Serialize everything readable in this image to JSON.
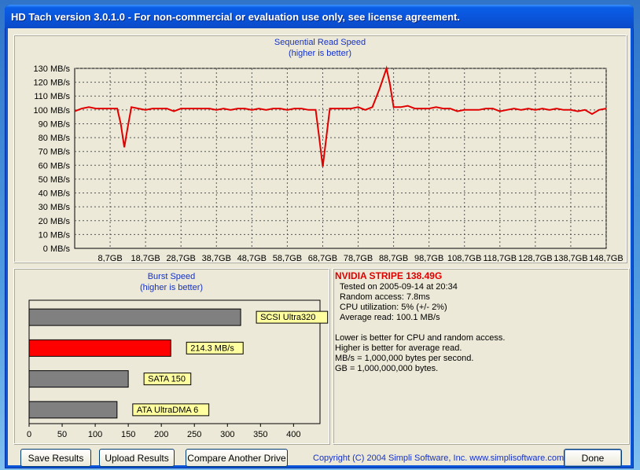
{
  "window": {
    "title": "HD Tach version 3.0.1.0  - For non-commercial or evaluation use only, see license agreement."
  },
  "colors": {
    "line": "#e00000",
    "bar_highlight": "#ff0000",
    "bar_normal": "#808080",
    "label_bg": "#ffffa0",
    "plot_bg": "#ece9d8"
  },
  "chart_data": [
    {
      "type": "line",
      "title": "Sequential Read Speed",
      "subtitle": "(higher is better)",
      "y_ticks": [
        "0 MB/s",
        "10 MB/s",
        "20 MB/s",
        "30 MB/s",
        "40 MB/s",
        "50 MB/s",
        "60 MB/s",
        "70 MB/s",
        "80 MB/s",
        "90 MB/s",
        "100 MB/s",
        "110 MB/s",
        "120 MB/s",
        "130 MB/s"
      ],
      "x_ticks": [
        "8,7GB",
        "18,7GB",
        "28,7GB",
        "38,7GB",
        "48,7GB",
        "58,7GB",
        "68,7GB",
        "78,7GB",
        "88,7GB",
        "98,7GB",
        "108,7GB",
        "118,7GB",
        "128,7GB",
        "138,7GB",
        "148,7GB"
      ],
      "xlim": [
        0,
        150
      ],
      "ylim": [
        0,
        130
      ],
      "grid": true,
      "x": [
        0,
        2,
        4,
        6,
        8,
        10,
        12,
        13,
        14,
        15,
        16,
        18,
        20,
        22,
        24,
        26,
        28,
        30,
        32,
        34,
        36,
        38,
        40,
        42,
        44,
        46,
        48,
        50,
        52,
        54,
        56,
        58,
        60,
        62,
        64,
        66,
        68,
        69,
        70,
        71,
        72,
        74,
        76,
        78,
        80,
        82,
        84,
        86,
        88,
        89,
        90,
        91,
        92,
        94,
        96,
        98,
        100,
        102,
        104,
        106,
        108,
        110,
        112,
        114,
        116,
        118,
        120,
        122,
        124,
        126,
        128,
        130,
        132,
        134,
        136,
        138,
        140,
        142,
        144,
        146,
        148,
        150
      ],
      "y": [
        99,
        101,
        102,
        101,
        101,
        101,
        101,
        90,
        73,
        88,
        102,
        101,
        100,
        101,
        101,
        101,
        99,
        101,
        101,
        101,
        101,
        101,
        100,
        101,
        100,
        101,
        101,
        100,
        101,
        100,
        101,
        101,
        100,
        101,
        101,
        100,
        100,
        80,
        59,
        80,
        101,
        101,
        101,
        101,
        102,
        100,
        102,
        115,
        130,
        118,
        102,
        102,
        102,
        103,
        101,
        101,
        101,
        102,
        101,
        101,
        99,
        100,
        100,
        100,
        101,
        101,
        99,
        100,
        101,
        100,
        101,
        100,
        101,
        100,
        101,
        100,
        100,
        99,
        100,
        97,
        100,
        101
      ]
    },
    {
      "type": "bar",
      "title": "Burst Speed",
      "subtitle": "(higher is better)",
      "categories": [
        "SCSI Ultra320",
        "214.3 MB/s",
        "SATA 150",
        "ATA UltraDMA 6"
      ],
      "values": [
        320,
        214.3,
        150,
        133
      ],
      "highlight_index": 1,
      "x_ticks": [
        "0",
        "50",
        "100",
        "150",
        "200",
        "250",
        "300",
        "350",
        "400"
      ],
      "xlim": [
        0,
        440
      ],
      "grid": false
    }
  ],
  "info": {
    "drive": "NVIDIA STRIPE 138.49G",
    "tested": "Tested on 2005-09-14 at 20:34",
    "random_access": "Random access: 7.8ms",
    "cpu": "CPU utilization: 5% (+/- 2%)",
    "average": "Average read: 100.1 MB/s",
    "note1": "Lower is better for CPU and random access.",
    "note2": "Higher is better for average read.",
    "note3": "MB/s = 1,000,000 bytes per second.",
    "note4": "GB = 1,000,000,000 bytes."
  },
  "buttons": {
    "save": "Save Results",
    "upload": "Upload Results",
    "compare": "Compare Another Drive",
    "done": "Done"
  },
  "copyright": "Copyright (C) 2004 Simpli Software, Inc. www.simplisoftware.com"
}
